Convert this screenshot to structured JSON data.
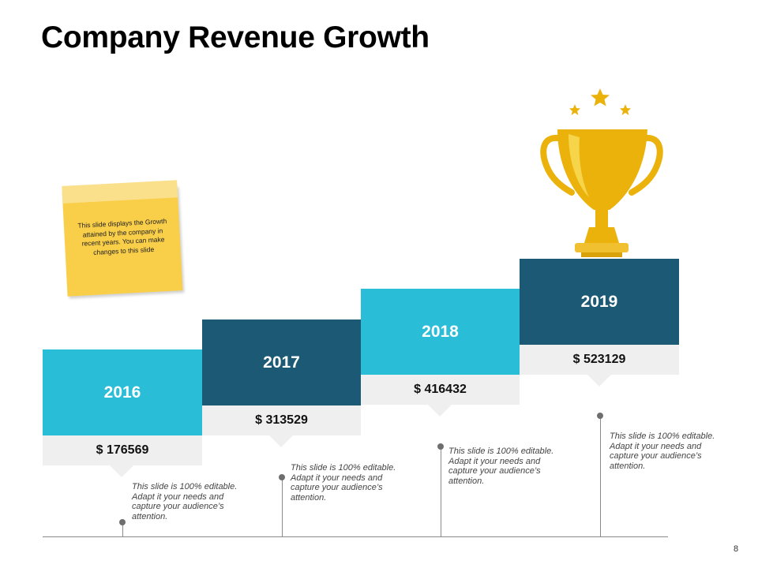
{
  "title": "Company Revenue Growth",
  "note": {
    "text": "This slide displays the Growth attained by the company in recent years. You can make changes to this slide"
  },
  "steps": [
    {
      "year": "2016",
      "value": "$ 176569",
      "description": "This slide is 100% editable. Adapt it your needs and capture your audience’s attention."
    },
    {
      "year": "2017",
      "value": "$ 313529",
      "description": "This slide is 100% editable. Adapt it your needs and capture your audience’s attention."
    },
    {
      "year": "2018",
      "value": "$ 416432",
      "description": "This slide is 100% editable. Adapt it your needs and capture your audience’s attention."
    },
    {
      "year": "2019",
      "value": "$ 523129",
      "description": "This slide is 100% editable. Adapt it your needs and capture your audience’s attention."
    }
  ],
  "page_number": "8",
  "colors": {
    "light_blue": "#29bdd8",
    "dark_blue": "#1b5975",
    "value_bg": "#efefef",
    "trophy_gold": "#ebb20c",
    "note_yellow": "#f9cf4a"
  }
}
